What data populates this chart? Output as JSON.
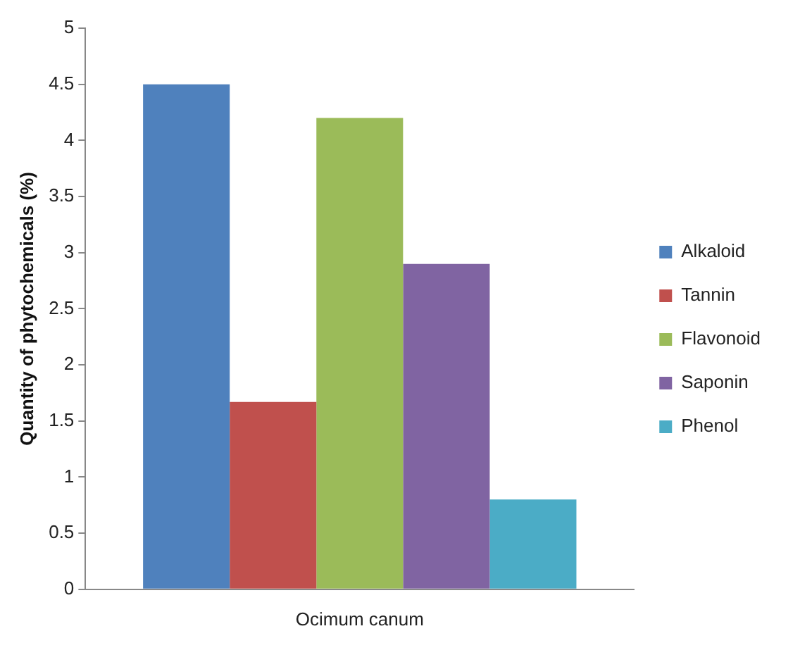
{
  "chart_data": {
    "type": "bar",
    "ylabel": "Quantity of phytochemicals (%)",
    "categories": [
      "Ocimum canum"
    ],
    "series": [
      {
        "name": "Alkaloid",
        "color": "#4f81bd",
        "values": [
          4.5
        ]
      },
      {
        "name": "Tannin",
        "color": "#c0504d",
        "values": [
          1.67
        ]
      },
      {
        "name": "Flavonoid",
        "color": "#9bbb59",
        "values": [
          4.2
        ]
      },
      {
        "name": "Saponin",
        "color": "#8064a2",
        "values": [
          2.9
        ]
      },
      {
        "name": "Phenol",
        "color": "#4bacc6",
        "values": [
          0.8
        ]
      }
    ],
    "ylim": [
      0,
      5
    ],
    "yticks": [
      0,
      0.5,
      1,
      1.5,
      2,
      2.5,
      3,
      3.5,
      4,
      4.5,
      5
    ],
    "grid": false,
    "legend": "right"
  }
}
